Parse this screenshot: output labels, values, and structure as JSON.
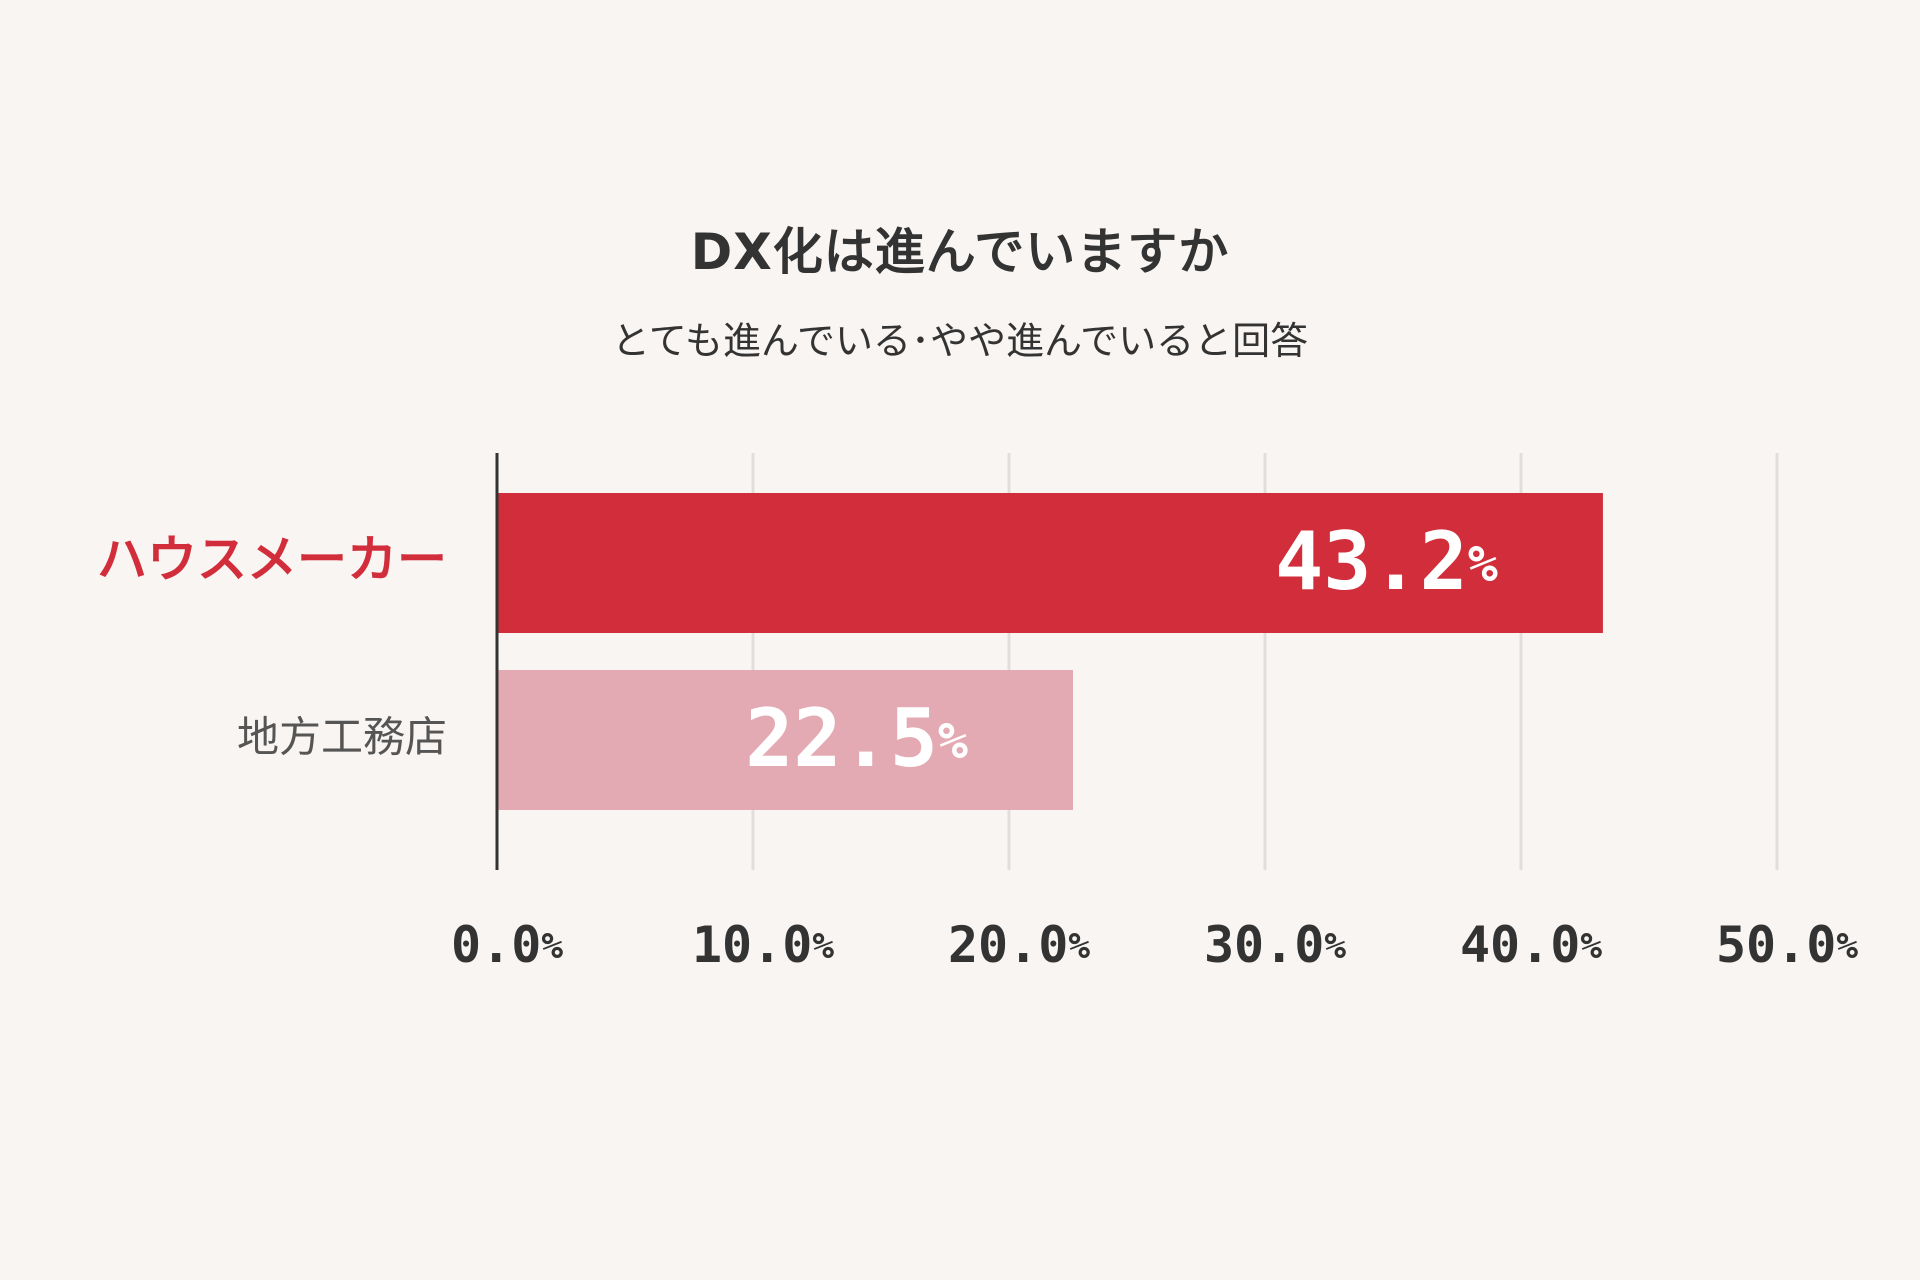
{
  "chart_data": {
    "type": "bar",
    "orientation": "horizontal",
    "title": "DX化は進んでいますか",
    "subtitle": "とても進んでいる･やや進んでいると回答",
    "categories": [
      "ハウスメーカー",
      "地方工務店"
    ],
    "values": [
      43.2,
      22.5
    ],
    "value_labels": [
      "43.2",
      "22.5"
    ],
    "value_unit": "%",
    "xlim": [
      0,
      50
    ],
    "x_ticks": [
      0,
      10,
      20,
      30,
      40,
      50
    ],
    "x_tick_labels": [
      "0.0",
      "10.0",
      "20.0",
      "30.0",
      "40.0",
      "50.0"
    ],
    "tick_unit": "%",
    "grid": true,
    "legend": "none",
    "colors": {
      "bars": [
        "#d22d3a",
        "#e4aab3"
      ],
      "category_labels": [
        "#d22d3a",
        "#555555"
      ],
      "value_labels": "#ffffff",
      "grid": "#e3dedb",
      "axis": "#333333",
      "ticks": "#333333",
      "background": "#f8f5f2"
    }
  }
}
